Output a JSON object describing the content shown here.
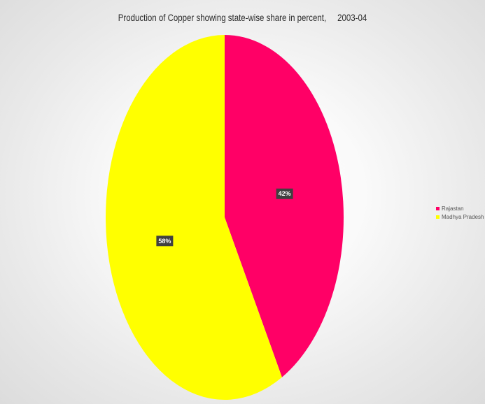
{
  "chart_data": {
    "type": "pie",
    "title": "Production of Copper showing state-wise share in percent,     2003-04",
    "categories": [
      "Rajastan",
      "Madhya Pradesh"
    ],
    "values": [
      42,
      58
    ],
    "data_labels": [
      "42%",
      "58%"
    ],
    "colors": [
      "#ff0066",
      "#ffff00"
    ],
    "start_angle_deg": 0,
    "direction": "clockwise",
    "legend_position": "right"
  }
}
